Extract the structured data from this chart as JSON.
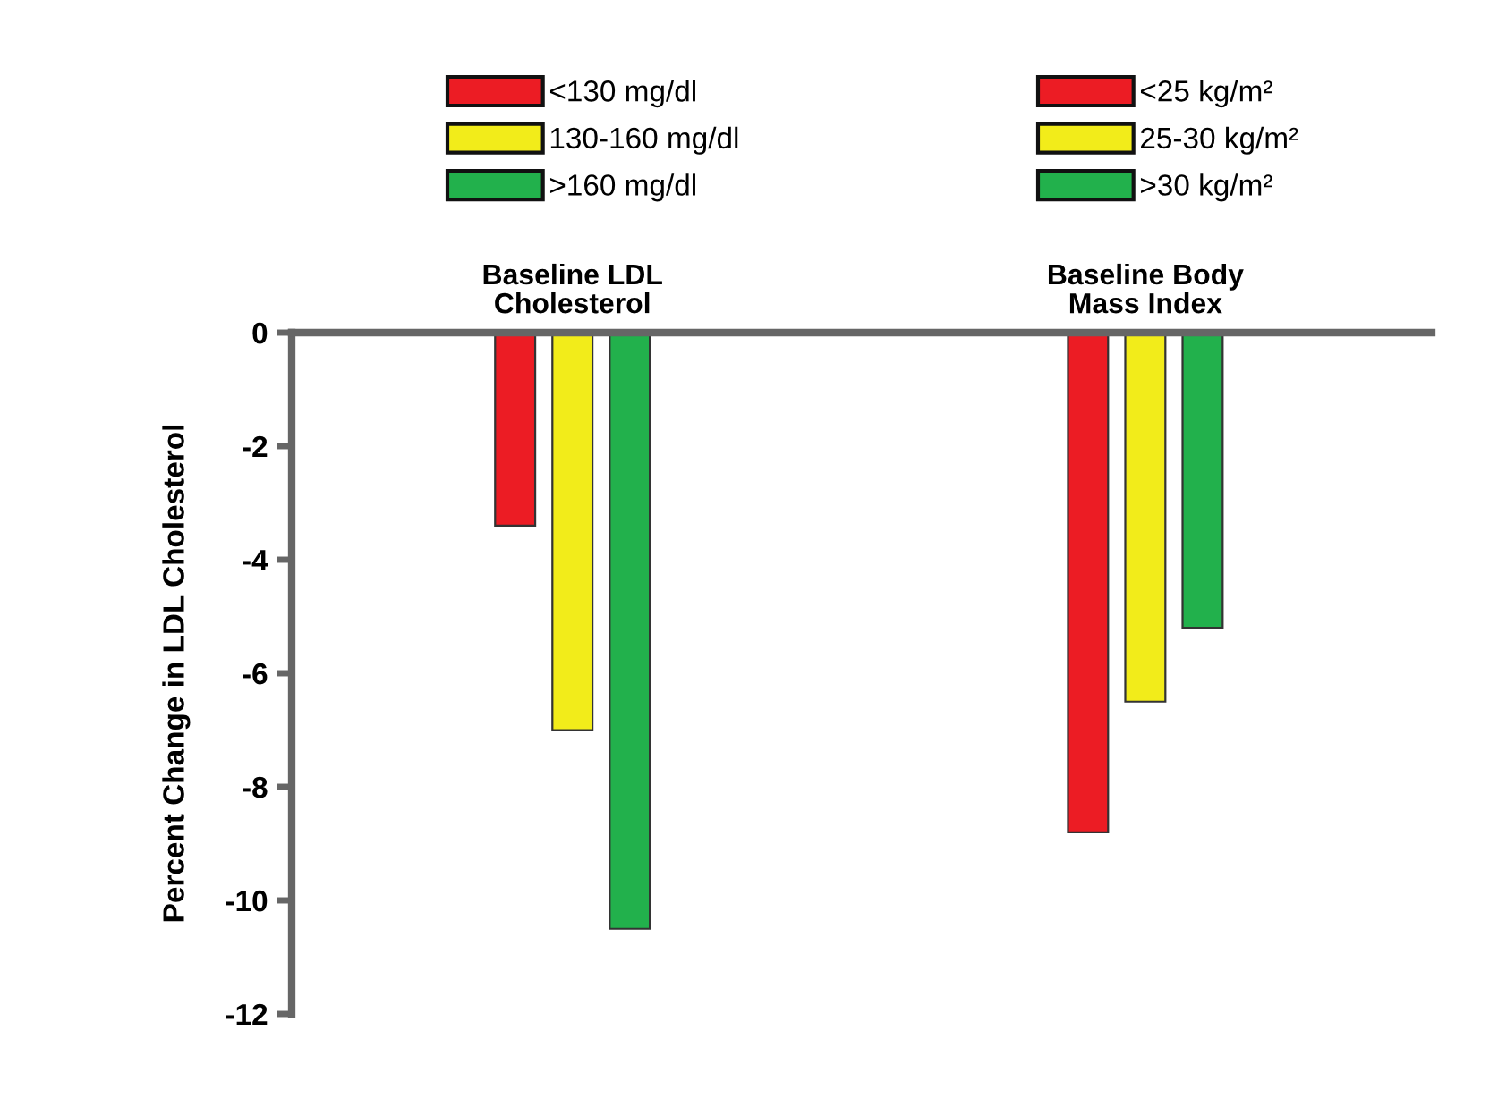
{
  "chart_data": {
    "type": "bar",
    "ylabel": "Percent Change in LDL Cholesterol",
    "categories": [
      "Baseline LDL Cholesterol",
      "Baseline Body Mass Index"
    ],
    "series": [
      {
        "name": "<130 mg/dl",
        "color": "#ec1c24",
        "values": [
          -3.4,
          null
        ]
      },
      {
        "name": "130-160 mg/dl",
        "color": "#f2ec1a",
        "values": [
          -7.0,
          null
        ]
      },
      {
        "name": ">160 mg/dl",
        "color": "#22b14c",
        "values": [
          -10.5,
          null
        ]
      },
      {
        "name": "<25 kg/m²",
        "color": "#ec1c24",
        "values": [
          null,
          -8.8
        ]
      },
      {
        "name": "25-30 kg/m²",
        "color": "#f2ec1a",
        "values": [
          null,
          -6.5
        ]
      },
      {
        "name": ">30 kg/m²",
        "color": "#22b14c",
        "values": [
          null,
          -5.2
        ]
      }
    ],
    "ylim": [
      -12,
      0
    ],
    "yticks": [
      0,
      -2,
      -4,
      -6,
      -8,
      -10,
      -12
    ],
    "legend": "top",
    "grid": false
  }
}
